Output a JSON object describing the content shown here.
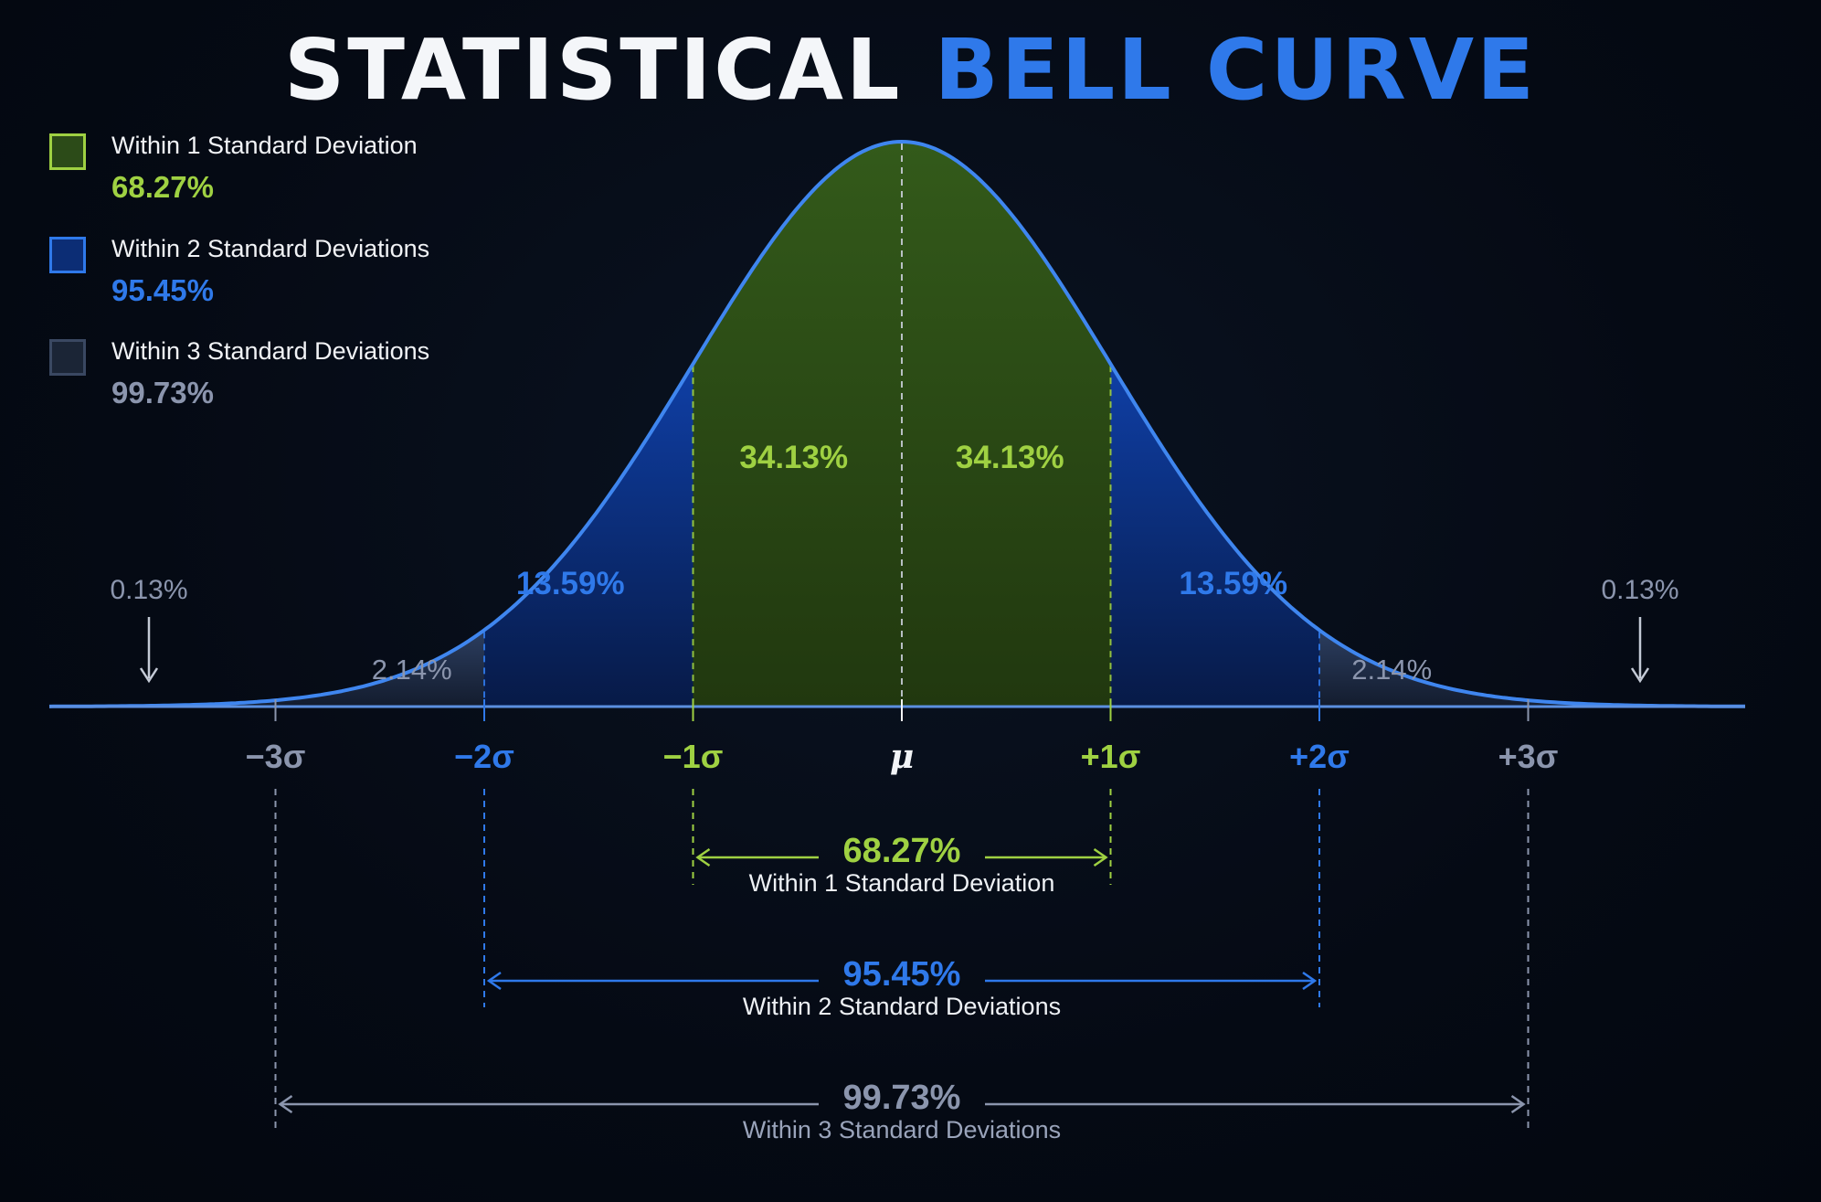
{
  "title": {
    "part1": "STATISTICAL",
    "part2": "BELL CURVE"
  },
  "colors": {
    "green": "#9fd142",
    "blue": "#2f79ea",
    "gray": "#8b95ad",
    "curve": "#3f86ef",
    "green_fill": "#2c4b18",
    "blue_fill": "#0c2d75",
    "gray_fill": "#22324d"
  },
  "legend": [
    {
      "label": "Within 1 Standard Deviation",
      "value": "68.27%",
      "color": "green"
    },
    {
      "label": "Within 2 Standard Deviations",
      "value": "95.45%",
      "color": "blue"
    },
    {
      "label": "Within 3 Standard Deviations",
      "value": "99.73%",
      "color": "gray"
    }
  ],
  "chart_data": {
    "type": "area",
    "distribution": "normal",
    "x_ticks": [
      {
        "label": "−3σ",
        "x": -3,
        "color": "gray"
      },
      {
        "label": "−2σ",
        "x": -2,
        "color": "blue"
      },
      {
        "label": "−1σ",
        "x": -1,
        "color": "green"
      },
      {
        "label": "μ",
        "x": 0,
        "color": "white"
      },
      {
        "label": "+1σ",
        "x": 1,
        "color": "green"
      },
      {
        "label": "+2σ",
        "x": 2,
        "color": "blue"
      },
      {
        "label": "+3σ",
        "x": 3,
        "color": "gray"
      }
    ],
    "regions": [
      {
        "from": -1,
        "to": 0,
        "label": "34.13%",
        "value": 34.13,
        "color": "green"
      },
      {
        "from": 0,
        "to": 1,
        "label": "34.13%",
        "value": 34.13,
        "color": "green"
      },
      {
        "from": -2,
        "to": -1,
        "label": "13.59%",
        "value": 13.59,
        "color": "blue"
      },
      {
        "from": 1,
        "to": 2,
        "label": "13.59%",
        "value": 13.59,
        "color": "blue"
      },
      {
        "from": -3,
        "to": -2,
        "label": "2.14%",
        "value": 2.14,
        "color": "gray"
      },
      {
        "from": 2,
        "to": 3,
        "label": "2.14%",
        "value": 2.14,
        "color": "gray"
      }
    ],
    "tails": [
      {
        "side": "left",
        "label": "0.13%",
        "value": 0.13
      },
      {
        "side": "right",
        "label": "0.13%",
        "value": 0.13
      }
    ],
    "ranges": [
      {
        "from": -1,
        "to": 1,
        "value": "68.27%",
        "label": "Within 1 Standard Deviation",
        "color": "green"
      },
      {
        "from": -2,
        "to": 2,
        "value": "95.45%",
        "label": "Within 2 Standard Deviations",
        "color": "blue"
      },
      {
        "from": -3,
        "to": 3,
        "value": "99.73%",
        "label": "Within 3 Standard Deviations",
        "color": "gray"
      }
    ]
  }
}
